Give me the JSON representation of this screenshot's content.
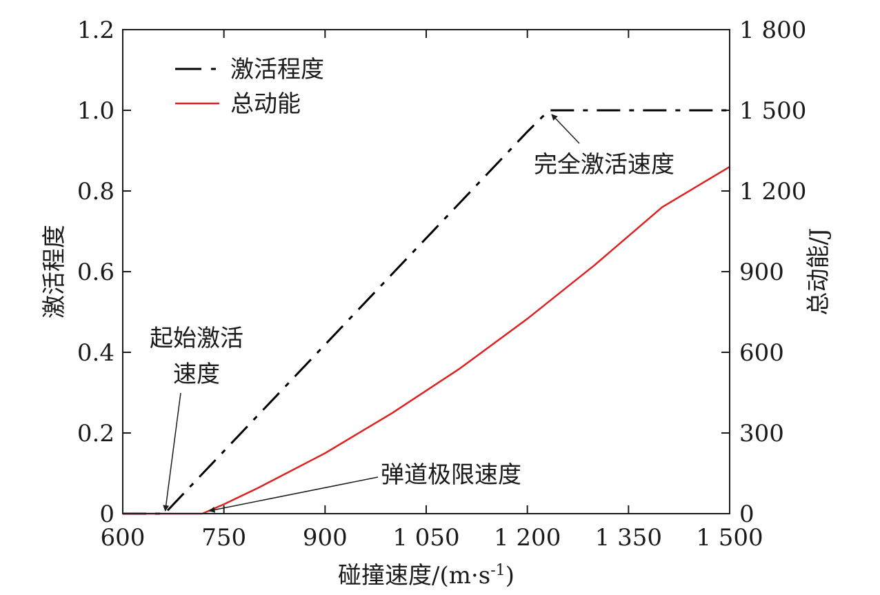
{
  "chart_data": {
    "type": "line",
    "title": "",
    "xlabel": "碰撞速度/(m·s",
    "xlabel_sup": "-1",
    "xlabel_end": ")",
    "ylabel_left": "激活程度",
    "ylabel_right": "总动能/J",
    "xlim": [
      600,
      1500
    ],
    "ylim_left": [
      0,
      1.2
    ],
    "ylim_right": [
      0,
      1800
    ],
    "x_ticks": [
      600,
      750,
      900,
      1050,
      1200,
      1350,
      1500
    ],
    "x_tick_labels": [
      "600",
      "750",
      "900",
      "1 050",
      "1 200",
      "1 350",
      "1 500"
    ],
    "y_left_ticks": [
      0,
      0.2,
      0.4,
      0.6,
      0.8,
      1.0,
      1.2
    ],
    "y_left_tick_labels": [
      "0",
      "0.2",
      "0.4",
      "0.6",
      "0.8",
      "1.0",
      "1.2"
    ],
    "y_right_ticks": [
      0,
      300,
      600,
      900,
      1200,
      1500,
      1800
    ],
    "y_right_tick_labels": [
      "0",
      "300",
      "600",
      "900",
      "1 200",
      "1 500",
      "1 800"
    ],
    "grid": false,
    "legend_position": "top-left",
    "series": [
      {
        "name": "激活程度",
        "axis": "left",
        "style": "dash-dot",
        "color": "#000000",
        "x": [
          600,
          662,
          700,
          800,
          900,
          1000,
          1100,
          1200,
          1232,
          1300,
          1400,
          1500
        ],
        "y": [
          0,
          0,
          0.067,
          0.243,
          0.419,
          0.595,
          0.771,
          0.947,
          1.0,
          1.0,
          1.0,
          1.0
        ]
      },
      {
        "name": "总动能",
        "axis": "right",
        "style": "solid",
        "color": "#e02020",
        "x": [
          600,
          718,
          750,
          800,
          900,
          1000,
          1100,
          1200,
          1300,
          1400,
          1500
        ],
        "y": [
          0,
          0,
          35,
          95,
          225,
          375,
          540,
          725,
          925,
          1140,
          1290
        ]
      }
    ],
    "annotations": [
      {
        "lines": [
          "起始激活",
          "速度"
        ],
        "target_x": 662,
        "target_y_left": 0
      },
      {
        "lines": [
          "弹道极限速度"
        ],
        "target_x": 718,
        "target_y_left": 0
      },
      {
        "lines": [
          "完全激活速度"
        ],
        "target_x": 1232,
        "target_y_left": 1.0
      }
    ]
  }
}
